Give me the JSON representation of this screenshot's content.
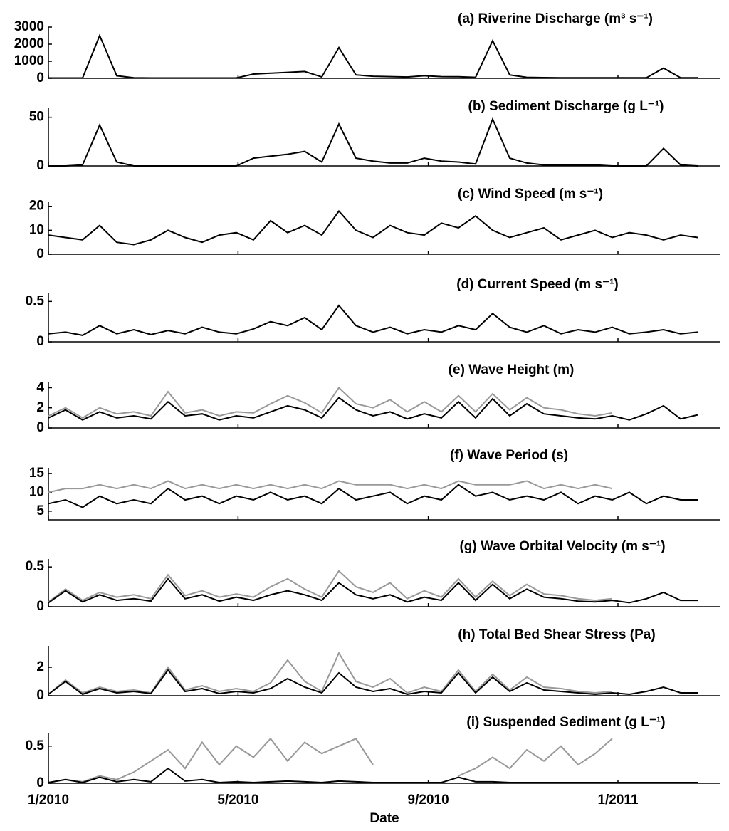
{
  "chart_data": [
    {
      "type": "line",
      "title": "(a) Riverine Discharge (m³ s⁻¹)",
      "x": [
        2010,
        2010.03,
        2010.06,
        2010.09,
        2010.12,
        2010.15,
        2010.18,
        2010.21,
        2010.24,
        2010.27,
        2010.3,
        2010.33,
        2010.36,
        2010.39,
        2010.42,
        2010.45,
        2010.48,
        2010.51,
        2010.54,
        2010.57,
        2010.6,
        2010.63,
        2010.66,
        2010.69,
        2010.72,
        2010.75,
        2010.78,
        2010.81,
        2010.84,
        2010.87,
        2010.9,
        2010.93,
        2010.96,
        2010.99,
        2011.02,
        2011.05,
        2011.08,
        2011.11,
        2011.14
      ],
      "xlim": [
        2010,
        2011.18
      ],
      "ylim": [
        0,
        3000
      ],
      "yticks": [
        0,
        1000,
        2000,
        3000
      ],
      "series": [
        {
          "color": "#000000",
          "values": [
            20,
            20,
            20,
            2500,
            150,
            30,
            20,
            20,
            20,
            20,
            20,
            20,
            250,
            300,
            350,
            400,
            80,
            1800,
            200,
            120,
            100,
            80,
            150,
            100,
            90,
            60,
            2200,
            200,
            60,
            40,
            30,
            30,
            30,
            30,
            30,
            30,
            600,
            30,
            30
          ]
        }
      ]
    },
    {
      "type": "line",
      "title": "(b) Sediment Discharge (g L⁻¹)",
      "x": [
        2010,
        2010.03,
        2010.06,
        2010.09,
        2010.12,
        2010.15,
        2010.18,
        2010.21,
        2010.24,
        2010.27,
        2010.3,
        2010.33,
        2010.36,
        2010.39,
        2010.42,
        2010.45,
        2010.48,
        2010.51,
        2010.54,
        2010.57,
        2010.6,
        2010.63,
        2010.66,
        2010.69,
        2010.72,
        2010.75,
        2010.78,
        2010.81,
        2010.84,
        2010.87,
        2010.9,
        2010.93,
        2010.96,
        2010.99,
        2011.02,
        2011.05,
        2011.08,
        2011.11,
        2011.14
      ],
      "xlim": [
        2010,
        2011.18
      ],
      "ylim": [
        0,
        60
      ],
      "yticks": [
        0,
        50
      ],
      "series": [
        {
          "color": "#000000",
          "values": [
            0,
            0,
            1,
            42,
            4,
            0,
            0,
            0,
            0,
            0,
            0,
            0,
            8,
            10,
            12,
            15,
            4,
            43,
            8,
            5,
            3,
            3,
            8,
            5,
            4,
            2,
            48,
            8,
            3,
            1,
            1,
            1,
            1,
            0,
            0,
            0,
            18,
            1,
            0
          ]
        }
      ]
    },
    {
      "type": "line",
      "title": "(c) Wind Speed (m s⁻¹)",
      "x": [
        2010,
        2010.03,
        2010.06,
        2010.09,
        2010.12,
        2010.15,
        2010.18,
        2010.21,
        2010.24,
        2010.27,
        2010.3,
        2010.33,
        2010.36,
        2010.39,
        2010.42,
        2010.45,
        2010.48,
        2010.51,
        2010.54,
        2010.57,
        2010.6,
        2010.63,
        2010.66,
        2010.69,
        2010.72,
        2010.75,
        2010.78,
        2010.81,
        2010.84,
        2010.87,
        2010.9,
        2010.93,
        2010.96,
        2010.99,
        2011.02,
        2011.05,
        2011.08,
        2011.11,
        2011.14
      ],
      "xlim": [
        2010,
        2011.18
      ],
      "ylim": [
        0,
        22
      ],
      "yticks": [
        0,
        10,
        20
      ],
      "series": [
        {
          "color": "#000000",
          "values": [
            8,
            7,
            6,
            12,
            5,
            4,
            6,
            10,
            7,
            5,
            8,
            9,
            6,
            14,
            9,
            12,
            8,
            18,
            10,
            7,
            12,
            9,
            8,
            13,
            11,
            16,
            10,
            7,
            9,
            11,
            6,
            8,
            10,
            7,
            9,
            8,
            6,
            8,
            7
          ]
        }
      ]
    },
    {
      "type": "line",
      "title": "(d) Current Speed (m s⁻¹)",
      "x": [
        2010,
        2010.03,
        2010.06,
        2010.09,
        2010.12,
        2010.15,
        2010.18,
        2010.21,
        2010.24,
        2010.27,
        2010.3,
        2010.33,
        2010.36,
        2010.39,
        2010.42,
        2010.45,
        2010.48,
        2010.51,
        2010.54,
        2010.57,
        2010.6,
        2010.63,
        2010.66,
        2010.69,
        2010.72,
        2010.75,
        2010.78,
        2010.81,
        2010.84,
        2010.87,
        2010.9,
        2010.93,
        2010.96,
        2010.99,
        2011.02,
        2011.05,
        2011.08,
        2011.11,
        2011.14
      ],
      "xlim": [
        2010,
        2011.18
      ],
      "ylim": [
        0,
        0.6
      ],
      "yticks": [
        0,
        0.5
      ],
      "series": [
        {
          "color": "#000000",
          "values": [
            0.1,
            0.12,
            0.08,
            0.2,
            0.1,
            0.15,
            0.09,
            0.14,
            0.1,
            0.18,
            0.12,
            0.1,
            0.16,
            0.25,
            0.2,
            0.3,
            0.15,
            0.45,
            0.2,
            0.12,
            0.18,
            0.1,
            0.15,
            0.12,
            0.2,
            0.15,
            0.35,
            0.18,
            0.12,
            0.2,
            0.1,
            0.15,
            0.12,
            0.18,
            0.1,
            0.12,
            0.15,
            0.1,
            0.12
          ]
        }
      ]
    },
    {
      "type": "line",
      "title": "(e) Wave Height (m)",
      "x": [
        2010,
        2010.03,
        2010.06,
        2010.09,
        2010.12,
        2010.15,
        2010.18,
        2010.21,
        2010.24,
        2010.27,
        2010.3,
        2010.33,
        2010.36,
        2010.39,
        2010.42,
        2010.45,
        2010.48,
        2010.51,
        2010.54,
        2010.57,
        2010.6,
        2010.63,
        2010.66,
        2010.69,
        2010.72,
        2010.75,
        2010.78,
        2010.81,
        2010.84,
        2010.87,
        2010.9,
        2010.93,
        2010.96,
        2010.99,
        2011.02,
        2011.05,
        2011.08,
        2011.11,
        2011.14
      ],
      "xlim": [
        2010,
        2011.18
      ],
      "ylim": [
        0,
        4.6
      ],
      "yticks": [
        0,
        2,
        4
      ],
      "series": [
        {
          "color": "#999999",
          "values": [
            1.2,
            2,
            1,
            2,
            1.4,
            1.6,
            1.2,
            3.6,
            1.5,
            1.8,
            1.2,
            1.6,
            1.5,
            2.4,
            3.2,
            2.5,
            1.5,
            4,
            2.4,
            2,
            2.8,
            1.6,
            2.6,
            1.6,
            3.2,
            1.6,
            3.4,
            1.8,
            3,
            2,
            1.8,
            1.4,
            1.2,
            1.5,
            null,
            null,
            null,
            null,
            null
          ]
        },
        {
          "color": "#000000",
          "values": [
            1,
            1.8,
            0.8,
            1.6,
            1,
            1.2,
            0.9,
            2.6,
            1.2,
            1.4,
            0.8,
            1.2,
            1,
            1.6,
            2.2,
            1.8,
            1,
            3,
            1.8,
            1.2,
            1.6,
            0.9,
            1.4,
            1,
            2.6,
            1,
            2.9,
            1.2,
            2.4,
            1.4,
            1.2,
            1,
            0.9,
            1.2,
            0.8,
            1.4,
            2.2,
            0.9,
            1.3
          ]
        }
      ]
    },
    {
      "type": "line",
      "title": "(f) Wave Period (s)",
      "x": [
        2010,
        2010.03,
        2010.06,
        2010.09,
        2010.12,
        2010.15,
        2010.18,
        2010.21,
        2010.24,
        2010.27,
        2010.3,
        2010.33,
        2010.36,
        2010.39,
        2010.42,
        2010.45,
        2010.48,
        2010.51,
        2010.54,
        2010.57,
        2010.6,
        2010.63,
        2010.66,
        2010.69,
        2010.72,
        2010.75,
        2010.78,
        2010.81,
        2010.84,
        2010.87,
        2010.9,
        2010.93,
        2010.96,
        2010.99,
        2011.02,
        2011.05,
        2011.08,
        2011.11,
        2011.14
      ],
      "xlim": [
        2010,
        2011.18
      ],
      "ylim": [
        2.7,
        16.5
      ],
      "yticks": [
        5,
        10,
        15
      ],
      "series": [
        {
          "color": "#999999",
          "values": [
            10,
            11,
            11,
            12,
            11,
            12,
            11,
            13,
            11,
            12,
            11,
            12,
            11,
            12,
            11,
            12,
            11,
            13,
            12,
            12,
            12,
            11,
            12,
            11,
            13,
            12,
            12,
            12,
            13,
            11,
            12,
            11,
            12,
            11,
            null,
            null,
            null,
            null,
            null
          ]
        },
        {
          "color": "#000000",
          "values": [
            7,
            8,
            6,
            9,
            7,
            8,
            7,
            11,
            8,
            9,
            7,
            9,
            8,
            10,
            8,
            9,
            7,
            11,
            8,
            9,
            10,
            7,
            9,
            8,
            12,
            9,
            10,
            8,
            9,
            8,
            10,
            7,
            9,
            8,
            10,
            7,
            9,
            8,
            8
          ]
        }
      ]
    },
    {
      "type": "line",
      "title": "(g) Wave Orbital Velocity (m s⁻¹)",
      "x": [
        2010,
        2010.03,
        2010.06,
        2010.09,
        2010.12,
        2010.15,
        2010.18,
        2010.21,
        2010.24,
        2010.27,
        2010.3,
        2010.33,
        2010.36,
        2010.39,
        2010.42,
        2010.45,
        2010.48,
        2010.51,
        2010.54,
        2010.57,
        2010.6,
        2010.63,
        2010.66,
        2010.69,
        2010.72,
        2010.75,
        2010.78,
        2010.81,
        2010.84,
        2010.87,
        2010.9,
        2010.93,
        2010.96,
        2010.99,
        2011.02,
        2011.05,
        2011.08,
        2011.11,
        2011.14
      ],
      "xlim": [
        2010,
        2011.18
      ],
      "ylim": [
        0,
        0.6
      ],
      "yticks": [
        0,
        0.5
      ],
      "series": [
        {
          "color": "#999999",
          "values": [
            0.06,
            0.22,
            0.08,
            0.18,
            0.12,
            0.15,
            0.1,
            0.4,
            0.14,
            0.2,
            0.12,
            0.16,
            0.12,
            0.25,
            0.35,
            0.22,
            0.12,
            0.45,
            0.25,
            0.18,
            0.3,
            0.1,
            0.2,
            0.12,
            0.35,
            0.12,
            0.32,
            0.14,
            0.28,
            0.16,
            0.14,
            0.1,
            0.08,
            0.1,
            null,
            null,
            null,
            null,
            null
          ]
        },
        {
          "color": "#000000",
          "values": [
            0.05,
            0.2,
            0.06,
            0.15,
            0.08,
            0.1,
            0.07,
            0.35,
            0.1,
            0.15,
            0.07,
            0.12,
            0.08,
            0.15,
            0.2,
            0.15,
            0.08,
            0.3,
            0.15,
            0.1,
            0.15,
            0.06,
            0.12,
            0.08,
            0.3,
            0.08,
            0.28,
            0.1,
            0.22,
            0.12,
            0.1,
            0.07,
            0.06,
            0.08,
            0.05,
            0.1,
            0.18,
            0.08,
            0.08
          ]
        }
      ]
    },
    {
      "type": "line",
      "title": "(h) Total Bed Shear Stress (Pa)",
      "x": [
        2010,
        2010.03,
        2010.06,
        2010.09,
        2010.12,
        2010.15,
        2010.18,
        2010.21,
        2010.24,
        2010.27,
        2010.3,
        2010.33,
        2010.36,
        2010.39,
        2010.42,
        2010.45,
        2010.48,
        2010.51,
        2010.54,
        2010.57,
        2010.6,
        2010.63,
        2010.66,
        2010.69,
        2010.72,
        2010.75,
        2010.78,
        2010.81,
        2010.84,
        2010.87,
        2010.9,
        2010.93,
        2010.96,
        2010.99,
        2011.02,
        2011.05,
        2011.08,
        2011.11,
        2011.14
      ],
      "xlim": [
        2010,
        2011.18
      ],
      "ylim": [
        0,
        3.5
      ],
      "yticks": [
        0,
        2
      ],
      "series": [
        {
          "color": "#999999",
          "values": [
            0.1,
            1.1,
            0.2,
            0.6,
            0.3,
            0.4,
            0.2,
            2,
            0.4,
            0.7,
            0.3,
            0.5,
            0.3,
            0.9,
            2.5,
            1,
            0.3,
            3,
            1,
            0.6,
            1.2,
            0.2,
            0.6,
            0.3,
            1.8,
            0.3,
            1.5,
            0.4,
            1.3,
            0.6,
            0.5,
            0.3,
            0.2,
            0.3,
            null,
            null,
            null,
            null,
            null
          ]
        },
        {
          "color": "#000000",
          "values": [
            0.1,
            1,
            0.1,
            0.5,
            0.2,
            0.3,
            0.15,
            1.8,
            0.3,
            0.5,
            0.15,
            0.3,
            0.2,
            0.5,
            1.2,
            0.6,
            0.2,
            1.6,
            0.6,
            0.3,
            0.5,
            0.1,
            0.3,
            0.2,
            1.6,
            0.2,
            1.3,
            0.3,
            0.9,
            0.4,
            0.3,
            0.2,
            0.1,
            0.2,
            0.1,
            0.3,
            0.6,
            0.2,
            0.2
          ]
        }
      ]
    },
    {
      "type": "line",
      "title": "(i) Suspended Sediment (g L⁻¹)",
      "xlabel": "Date",
      "x": [
        2010,
        2010.03,
        2010.06,
        2010.09,
        2010.12,
        2010.15,
        2010.18,
        2010.21,
        2010.24,
        2010.27,
        2010.3,
        2010.33,
        2010.36,
        2010.39,
        2010.42,
        2010.45,
        2010.48,
        2010.51,
        2010.54,
        2010.57,
        2010.6,
        2010.63,
        2010.66,
        2010.69,
        2010.72,
        2010.75,
        2010.78,
        2010.81,
        2010.84,
        2010.87,
        2010.9,
        2010.93,
        2010.96,
        2010.99,
        2011.02,
        2011.05,
        2011.08,
        2011.11,
        2011.14
      ],
      "xlim": [
        2010,
        2011.18
      ],
      "xticks": [
        {
          "value": 2010,
          "label": "1/2010"
        },
        {
          "value": 2010.333,
          "label": "5/2010"
        },
        {
          "value": 2010.667,
          "label": "9/2010"
        },
        {
          "value": 2011,
          "label": "1/2011"
        }
      ],
      "ylim": [
        0,
        0.67
      ],
      "yticks": [
        0,
        0.5
      ],
      "series": [
        {
          "color": "#999999",
          "values": [
            0.01,
            0.05,
            0.02,
            0.1,
            0.05,
            0.15,
            0.3,
            0.45,
            0.2,
            0.55,
            0.25,
            0.5,
            0.35,
            0.6,
            0.3,
            0.55,
            0.4,
            0.5,
            0.6,
            0.25,
            null,
            null,
            null,
            null,
            0.1,
            0.2,
            0.35,
            0.2,
            0.45,
            0.3,
            0.5,
            0.25,
            0.4,
            0.6,
            null,
            null,
            null,
            null,
            null
          ]
        },
        {
          "color": "#000000",
          "values": [
            0.01,
            0.05,
            0.01,
            0.08,
            0.02,
            0.05,
            0.02,
            0.2,
            0.03,
            0.05,
            0.01,
            0.02,
            0.01,
            0.02,
            0.03,
            0.02,
            0.01,
            0.03,
            0.02,
            0.01,
            0.01,
            0.01,
            0.01,
            0.01,
            0.08,
            0.02,
            0.02,
            0.01,
            0.01,
            0.01,
            0.01,
            0.01,
            0.01,
            0.01,
            0.01,
            0.01,
            0.01,
            0.01,
            0.01
          ]
        }
      ]
    }
  ]
}
